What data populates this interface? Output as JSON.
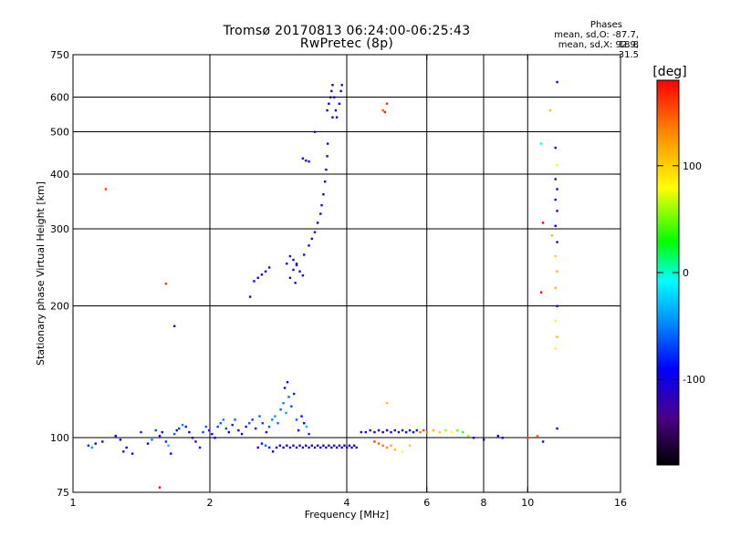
{
  "header": {
    "title_line1": "Tromsø 20170813 06:24:00-06:25:43",
    "title_line2": "RwPretec (8p)"
  },
  "phases_info": {
    "heading": "Phases",
    "line_o": "mean, sd,O: -87.7, 18.8",
    "line_x": "mean, sd,X:  92.9, 31.5"
  },
  "chart_data": {
    "type": "scatter",
    "title": "Tromsø 20170813 06:24:00-06:25:43",
    "subtitle": "RwPretec (8p)",
    "xlabel": "Frequency [MHz]",
    "ylabel": "Stationary phase Virtual Height [km]",
    "x_scale": "log",
    "y_scale": "log",
    "xlim": [
      1,
      16
    ],
    "ylim": [
      75,
      750
    ],
    "x_ticks": [
      1,
      2,
      4,
      6,
      8,
      10,
      16
    ],
    "x_tick_labels": [
      "1",
      "2",
      "4",
      "6",
      "8",
      "10",
      "16"
    ],
    "x_grid": [
      2,
      4,
      6,
      8,
      10
    ],
    "y_ticks": [
      75,
      100,
      200,
      300,
      400,
      500,
      600,
      750
    ],
    "y_tick_labels": [
      "75",
      "100",
      "200",
      "300",
      "400",
      "500",
      "600",
      "750"
    ],
    "y_grid": [
      100,
      200,
      300,
      400,
      500,
      600
    ],
    "grid": true,
    "colorbar": {
      "label": "[deg]",
      "range": [
        -180,
        180
      ],
      "ticks": [
        100,
        0,
        -100
      ],
      "tick_labels": [
        "100",
        "0",
        "-100"
      ],
      "colors": [
        "#000000",
        "#4b0082",
        "#0000ff",
        "#0096ff",
        "#00ffff",
        "#00ff00",
        "#ffff00",
        "#ff8c00",
        "#ff0000"
      ]
    },
    "series": [
      {
        "points": [
          [
            1.08,
            96,
            -80
          ],
          [
            1.1,
            95,
            -40
          ],
          [
            1.12,
            97,
            -90
          ],
          [
            1.16,
            98,
            -100
          ],
          [
            1.24,
            101,
            -110
          ],
          [
            1.27,
            99,
            -100
          ],
          [
            1.29,
            93,
            -120
          ],
          [
            1.31,
            95,
            -90
          ],
          [
            1.35,
            92,
            -100
          ],
          [
            1.41,
            103,
            -80
          ],
          [
            1.46,
            97,
            -95
          ],
          [
            1.49,
            99,
            -50
          ],
          [
            1.52,
            104,
            -70
          ],
          [
            1.55,
            101,
            -90
          ],
          [
            1.57,
            103,
            -100
          ],
          [
            1.6,
            98,
            -80
          ],
          [
            1.62,
            96,
            -30
          ],
          [
            1.64,
            92,
            -90
          ],
          [
            1.67,
            102,
            -60
          ],
          [
            1.69,
            104,
            -100
          ],
          [
            1.71,
            105,
            -70
          ],
          [
            1.74,
            107,
            -50
          ],
          [
            1.77,
            106,
            -80
          ],
          [
            1.8,
            103,
            -90
          ],
          [
            1.83,
            100,
            -100
          ],
          [
            1.86,
            98,
            -110
          ],
          [
            1.9,
            95,
            -90
          ],
          [
            1.93,
            103,
            -70
          ],
          [
            1.96,
            106,
            -60
          ],
          [
            1.99,
            104,
            -80
          ],
          [
            2.02,
            102,
            -100
          ],
          [
            2.05,
            100,
            -90
          ],
          [
            2.08,
            106,
            -70
          ],
          [
            2.11,
            108,
            -60
          ],
          [
            2.14,
            110,
            -50
          ],
          [
            2.17,
            105,
            -70
          ],
          [
            2.2,
            103,
            -90
          ],
          [
            2.24,
            107,
            -80
          ],
          [
            2.27,
            110,
            -60
          ],
          [
            2.31,
            104,
            -90
          ],
          [
            2.35,
            102,
            -100
          ],
          [
            2.4,
            106,
            -80
          ],
          [
            2.44,
            108,
            -60
          ],
          [
            2.48,
            110,
            -70
          ],
          [
            2.52,
            105,
            -80
          ],
          [
            2.57,
            112,
            -60
          ],
          [
            2.61,
            108,
            -70
          ],
          [
            2.66,
            103,
            -100
          ],
          [
            2.7,
            106,
            -60
          ],
          [
            2.74,
            110,
            -50
          ],
          [
            2.78,
            112,
            -45
          ],
          [
            2.82,
            108,
            -55
          ],
          [
            2.86,
            116,
            -60
          ],
          [
            2.9,
            120,
            -50
          ],
          [
            2.94,
            114,
            -40
          ],
          [
            2.98,
            124,
            -60
          ],
          [
            3.02,
            118,
            -70
          ],
          [
            3.06,
            126,
            -80
          ],
          [
            3.1,
            110,
            -60
          ],
          [
            3.13,
            104,
            -90
          ],
          [
            3.18,
            112,
            -100
          ],
          [
            3.22,
            108,
            -90
          ],
          [
            2.92,
            130,
            -100
          ],
          [
            2.96,
            134,
            -110
          ],
          [
            3.26,
            106,
            -30
          ],
          [
            3.3,
            102,
            -80
          ],
          [
            2.55,
            95,
            -100
          ],
          [
            2.6,
            97,
            -90
          ],
          [
            2.65,
            96,
            -60
          ],
          [
            2.7,
            95,
            -80
          ],
          [
            2.75,
            93,
            -100
          ],
          [
            2.8,
            95,
            -110
          ],
          [
            2.85,
            96,
            -90
          ],
          [
            2.9,
            95,
            -100
          ],
          [
            2.95,
            96,
            -110
          ],
          [
            3.0,
            95,
            -120
          ],
          [
            3.05,
            96,
            -115
          ],
          [
            3.1,
            95,
            -120
          ],
          [
            3.15,
            96,
            -115
          ],
          [
            3.2,
            95,
            -120
          ],
          [
            3.25,
            96,
            -110
          ],
          [
            3.3,
            95,
            -120
          ],
          [
            3.35,
            96,
            -115
          ],
          [
            3.4,
            95,
            -120
          ],
          [
            3.45,
            96,
            -110
          ],
          [
            3.5,
            95,
            -115
          ],
          [
            3.55,
            96,
            -120
          ],
          [
            3.6,
            95,
            -110
          ],
          [
            3.65,
            96,
            -115
          ],
          [
            3.7,
            95,
            -120
          ],
          [
            3.75,
            96,
            -115
          ],
          [
            3.8,
            95,
            -110
          ],
          [
            3.85,
            96,
            -120
          ],
          [
            3.9,
            95,
            -115
          ],
          [
            3.95,
            96,
            -110
          ],
          [
            4.0,
            95,
            -120
          ],
          [
            4.05,
            96,
            -115
          ],
          [
            4.1,
            95,
            -110
          ],
          [
            4.15,
            96,
            -120
          ],
          [
            4.2,
            95,
            -115
          ],
          [
            4.3,
            103,
            -110
          ],
          [
            4.4,
            103,
            -105
          ],
          [
            4.5,
            104,
            -110
          ],
          [
            4.6,
            103,
            -100
          ],
          [
            4.7,
            104,
            -105
          ],
          [
            4.8,
            103,
            -110
          ],
          [
            4.9,
            104,
            -100
          ],
          [
            5.0,
            103,
            -95
          ],
          [
            5.1,
            104,
            -100
          ],
          [
            5.2,
            103,
            -105
          ],
          [
            5.3,
            104,
            -100
          ],
          [
            5.4,
            103,
            -90
          ],
          [
            5.5,
            104,
            -95
          ],
          [
            5.6,
            103,
            -100
          ],
          [
            5.7,
            104,
            -90
          ],
          [
            5.8,
            103,
            140
          ],
          [
            5.9,
            104,
            160
          ],
          [
            6.0,
            103,
            130
          ],
          [
            6.2,
            104,
            110
          ],
          [
            6.4,
            103,
            100
          ],
          [
            6.6,
            104,
            60
          ],
          [
            6.8,
            103,
            80
          ],
          [
            7.0,
            104,
            50
          ],
          [
            7.2,
            103,
            40
          ],
          [
            7.4,
            101,
            60
          ],
          [
            7.6,
            100,
            -100
          ],
          [
            8.0,
            99,
            -110
          ],
          [
            8.6,
            101,
            -110
          ],
          [
            8.8,
            100,
            -100
          ],
          [
            10.0,
            100,
            160
          ],
          [
            10.5,
            101,
            140
          ],
          [
            10.8,
            98,
            -100
          ],
          [
            4.7,
            97,
            150
          ],
          [
            4.8,
            96,
            140
          ],
          [
            4.9,
            95,
            130
          ],
          [
            5.0,
            96,
            120
          ],
          [
            5.1,
            94,
            110
          ],
          [
            5.3,
            93,
            80
          ],
          [
            5.5,
            96,
            100
          ],
          [
            4.6,
            98,
            160
          ],
          [
            2.45,
            210,
            -110
          ],
          [
            2.5,
            228,
            -100
          ],
          [
            2.55,
            232,
            -110
          ],
          [
            2.6,
            236,
            -100
          ],
          [
            2.65,
            240,
            -95
          ],
          [
            2.7,
            245,
            -105
          ],
          [
            2.95,
            250,
            -110
          ],
          [
            3.0,
            260,
            -120
          ],
          [
            3.05,
            255,
            -115
          ],
          [
            3.1,
            248,
            -120
          ],
          [
            3.15,
            240,
            -115
          ],
          [
            3.2,
            235,
            -110
          ],
          [
            3.05,
            242,
            -120
          ],
          [
            3.1,
            250,
            -115
          ],
          [
            3.0,
            232,
            -110
          ],
          [
            3.08,
            226,
            -120
          ],
          [
            3.22,
            262,
            -110
          ],
          [
            3.3,
            275,
            -105
          ],
          [
            3.35,
            285,
            -100
          ],
          [
            3.4,
            295,
            -110
          ],
          [
            3.45,
            310,
            -115
          ],
          [
            3.5,
            325,
            -110
          ],
          [
            3.52,
            340,
            -100
          ],
          [
            3.55,
            360,
            -105
          ],
          [
            3.58,
            385,
            -110
          ],
          [
            3.6,
            410,
            -100
          ],
          [
            3.62,
            440,
            -105
          ],
          [
            3.63,
            470,
            -110
          ],
          [
            3.2,
            435,
            -110
          ],
          [
            3.25,
            430,
            -100
          ],
          [
            3.3,
            428,
            -105
          ],
          [
            3.4,
            500,
            -110
          ],
          [
            3.62,
            560,
            -110
          ],
          [
            3.65,
            580,
            -100
          ],
          [
            3.68,
            600,
            -105
          ],
          [
            3.7,
            620,
            -110
          ],
          [
            3.72,
            640,
            -100
          ],
          [
            3.75,
            600,
            -110
          ],
          [
            3.78,
            560,
            -105
          ],
          [
            3.8,
            540,
            -110
          ],
          [
            3.85,
            580,
            -100
          ],
          [
            3.88,
            620,
            -105
          ],
          [
            3.9,
            640,
            -110
          ],
          [
            3.72,
            540,
            -120
          ],
          [
            4.8,
            560,
            150
          ],
          [
            4.85,
            555,
            170
          ],
          [
            4.9,
            580,
            160
          ],
          [
            1.18,
            370,
            160
          ],
          [
            1.6,
            225,
            160
          ],
          [
            1.67,
            180,
            -110
          ],
          [
            1.55,
            77,
            200
          ],
          [
            4.9,
            120,
            110
          ],
          [
            10.7,
            470,
            -10
          ],
          [
            10.8,
            310,
            180
          ],
          [
            10.7,
            215,
            180
          ],
          [
            11.2,
            560,
            110
          ],
          [
            11.3,
            290,
            110
          ],
          [
            11.6,
            650,
            -110
          ],
          [
            11.5,
            460,
            -120
          ],
          [
            11.6,
            420,
            80
          ],
          [
            11.5,
            390,
            -110
          ],
          [
            11.6,
            370,
            -100
          ],
          [
            11.5,
            350,
            -120
          ],
          [
            11.6,
            330,
            -110
          ],
          [
            11.5,
            305,
            -100
          ],
          [
            11.6,
            280,
            -130
          ],
          [
            11.5,
            260,
            100
          ],
          [
            11.6,
            240,
            110
          ],
          [
            11.5,
            220,
            110
          ],
          [
            11.6,
            200,
            -110
          ],
          [
            11.5,
            185,
            80
          ],
          [
            11.6,
            170,
            110
          ],
          [
            11.5,
            160,
            80
          ],
          [
            11.6,
            105,
            -110
          ]
        ]
      }
    ]
  }
}
